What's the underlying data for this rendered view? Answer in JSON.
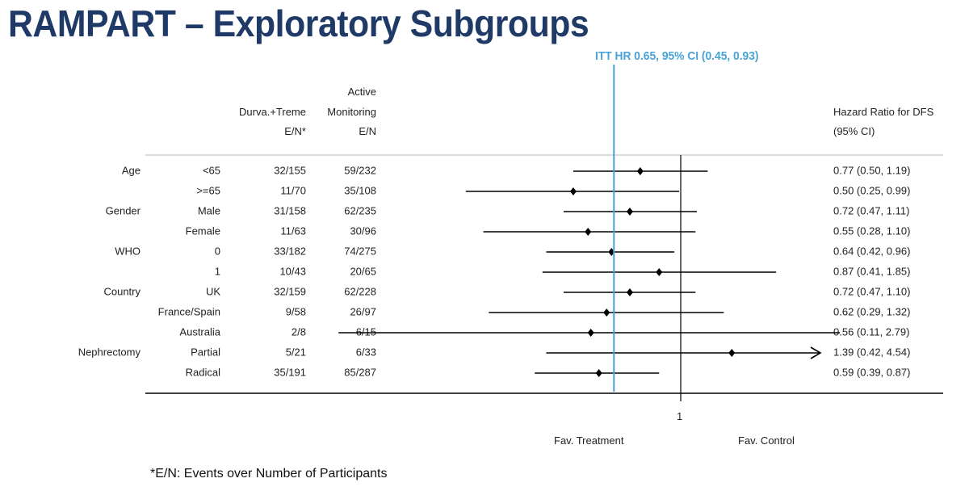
{
  "title": "RAMPART – Exploratory Subgroups",
  "itt_label": "ITT HR 0.65, 95% CI (0.45, 0.93)",
  "headers": {
    "treat_line1": "Durva.+Treme",
    "treat_line2": "E/N*",
    "ctrl_line0": "Active",
    "ctrl_line1": "Monitoring",
    "ctrl_line2": "E/N",
    "hr_line1": "Hazard Ratio for DFS",
    "hr_line2": "(95% CI)"
  },
  "axis": {
    "tick_label": "1",
    "fav_treatment": "Fav. Treatment",
    "fav_control": "Fav. Control"
  },
  "footnote": "*E/N: Events over Number of Participants",
  "colors": {
    "title": "#1f3a66",
    "itt_line": "#4aa3d6",
    "marks": "#000000"
  },
  "chart_data": {
    "type": "forest",
    "reference_value": 1,
    "itt_hr": 0.65,
    "rows": [
      {
        "group": "Age",
        "subgroup": "<65",
        "treat": "32/155",
        "ctrl": "59/232",
        "hr": 0.77,
        "lo": 0.5,
        "hi": 1.19,
        "hr_text": "0.77 (0.50, 1.19)"
      },
      {
        "group": "",
        "subgroup": ">=65",
        "treat": "11/70",
        "ctrl": "35/108",
        "hr": 0.5,
        "lo": 0.25,
        "hi": 0.99,
        "hr_text": "0.50 (0.25, 0.99)"
      },
      {
        "group": "Gender",
        "subgroup": "Male",
        "treat": "31/158",
        "ctrl": "62/235",
        "hr": 0.72,
        "lo": 0.47,
        "hi": 1.11,
        "hr_text": "0.72 (0.47, 1.11)"
      },
      {
        "group": "",
        "subgroup": "Female",
        "treat": "11/63",
        "ctrl": "30/96",
        "hr": 0.55,
        "lo": 0.28,
        "hi": 1.1,
        "hr_text": "0.55 (0.28, 1.10)"
      },
      {
        "group": "WHO",
        "subgroup": "0",
        "treat": "33/182",
        "ctrl": "74/275",
        "hr": 0.64,
        "lo": 0.42,
        "hi": 0.96,
        "hr_text": "0.64 (0.42, 0.96)"
      },
      {
        "group": "",
        "subgroup": "1",
        "treat": "10/43",
        "ctrl": "20/65",
        "hr": 0.87,
        "lo": 0.41,
        "hi": 1.85,
        "hr_text": "0.87 (0.41, 1.85)"
      },
      {
        "group": "Country",
        "subgroup": "UK",
        "treat": "32/159",
        "ctrl": "62/228",
        "hr": 0.72,
        "lo": 0.47,
        "hi": 1.1,
        "hr_text": "0.72 (0.47, 1.10)"
      },
      {
        "group": "",
        "subgroup": "France/Spain",
        "treat": "9/58",
        "ctrl": "26/97",
        "hr": 0.62,
        "lo": 0.29,
        "hi": 1.32,
        "hr_text": "0.62 (0.29, 1.32)"
      },
      {
        "group": "",
        "subgroup": "Australia",
        "treat": "2/8",
        "ctrl": "6/15",
        "hr": 0.56,
        "lo": 0.11,
        "hi": 2.79,
        "hr_text": "0.56 (0.11, 2.79)"
      },
      {
        "group": "Nephrectomy",
        "subgroup": "Partial",
        "treat": "5/21",
        "ctrl": "6/33",
        "hr": 1.39,
        "lo": 0.42,
        "hi": 4.54,
        "hr_text": "1.39 (0.42, 4.54)",
        "arrow": true
      },
      {
        "group": "",
        "subgroup": "Radical",
        "treat": "35/191",
        "ctrl": "85/287",
        "hr": 0.59,
        "lo": 0.39,
        "hi": 0.87,
        "hr_text": "0.59 (0.39, 0.87)"
      }
    ]
  }
}
